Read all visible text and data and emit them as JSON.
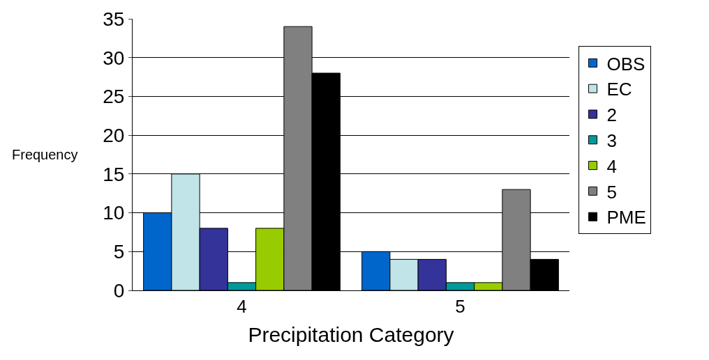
{
  "chart_data": {
    "type": "bar",
    "xlabel": "Precipitation Category",
    "ylabel": "Frequency",
    "categories": [
      "4",
      "5"
    ],
    "ylim": [
      0,
      35
    ],
    "yticks": [
      0,
      5,
      10,
      15,
      20,
      25,
      30,
      35
    ],
    "grid": "y",
    "legend": "right",
    "series": [
      {
        "name": "OBS",
        "color": "#0066cc",
        "values": [
          10,
          5
        ]
      },
      {
        "name": "EC",
        "color": "#c0e4e8",
        "values": [
          15,
          4
        ]
      },
      {
        "name": "2",
        "color": "#333399",
        "values": [
          8,
          4
        ]
      },
      {
        "name": "3",
        "color": "#009999",
        "values": [
          1,
          1
        ]
      },
      {
        "name": "4",
        "color": "#99cc00",
        "values": [
          8,
          1
        ]
      },
      {
        "name": "5",
        "color": "#808080",
        "values": [
          34,
          13
        ]
      },
      {
        "name": "PME",
        "color": "#000000",
        "values": [
          28,
          4
        ]
      }
    ]
  }
}
